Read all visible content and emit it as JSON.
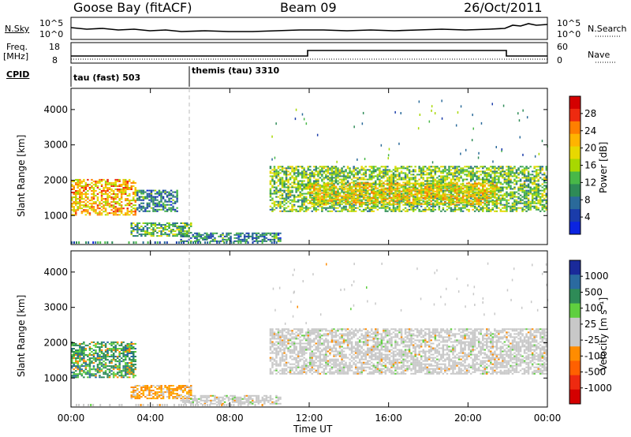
{
  "header": {
    "site": "Goose Bay (fitACF)",
    "beam": "Beam 09",
    "date": "26/Oct/2011"
  },
  "top_panels": {
    "nsky_label": "N.Sky",
    "nsky_ticks": [
      "10^5",
      "10^0"
    ],
    "nsearch_label": "N.Search",
    "nsearch_ticks": [
      "10^5",
      "10^0"
    ],
    "freq_label": "Freq.",
    "freq_unit": "[MHz]",
    "freq_ticks": [
      "18",
      "8"
    ],
    "nave_label": "Nave",
    "nave_ticks": [
      "60",
      "0"
    ],
    "cpid_label": "CPID",
    "cpid_segments": [
      "tau (fast) 503",
      "themis (tau) 3310"
    ]
  },
  "power_panel": {
    "ylabel": "Slant Range [km]",
    "colorbar_label": "Power [dB]",
    "colorbar_ticks": [
      "28",
      "24",
      "20",
      "16",
      "12",
      "8",
      "4"
    ],
    "colorbar_colors": [
      "#d40000",
      "#ee2a10",
      "#ff7f00",
      "#ffb400",
      "#e8d800",
      "#a8d800",
      "#48b848",
      "#2e8b57",
      "#2a6a9a",
      "#1a3caa",
      "#0b24e0"
    ]
  },
  "velocity_panel": {
    "ylabel": "Slant Range [km]",
    "colorbar_label": "Velocity [m s⁻¹]",
    "colorbar_ticks": [
      "1000",
      "500",
      "100",
      "25",
      "-25",
      "-100",
      "-500",
      "-1000"
    ],
    "colorbar_colors": [
      "#1a2a9a",
      "#2a6aa0",
      "#2e8b57",
      "#5fcf3f",
      "#c8c8c8",
      "#c8c8c8",
      "#ff8c00",
      "#ff6000",
      "#ee2a10",
      "#d40000"
    ]
  },
  "xaxis": {
    "label": "Time UT",
    "ticks": [
      "00:00",
      "04:00",
      "08:00",
      "12:00",
      "16:00",
      "20:00",
      "00:00"
    ]
  },
  "chart_data": [
    {
      "type": "heatmap",
      "title": "Goose Bay (fitACF)  Beam 09  26/Oct/2011",
      "xlabel": "Time UT",
      "ylabel": "Slant Range [km]",
      "colorbar": "Power [dB]",
      "xlim_hours": [
        0,
        24
      ],
      "ylim_km": [
        180,
        4600
      ],
      "clim_db": [
        0,
        32
      ],
      "x_ticks": [
        "00:00",
        "04:00",
        "08:00",
        "12:00",
        "16:00",
        "20:00",
        "00:00"
      ],
      "y_ticks": [
        1000,
        2000,
        3000,
        4000
      ],
      "regions": [
        {
          "t_start": 0.0,
          "t_end": 3.3,
          "range_low": 1000,
          "range_high": 2000,
          "power_db": 22
        },
        {
          "t_start": 3.3,
          "t_end": 5.3,
          "range_low": 1100,
          "range_high": 1700,
          "power_db": 8
        },
        {
          "t_start": 3.0,
          "t_end": 6.0,
          "range_low": 400,
          "range_high": 800,
          "power_db": 12
        },
        {
          "t_start": 5.5,
          "t_end": 10.5,
          "range_low": 250,
          "range_high": 500,
          "power_db": 8
        },
        {
          "t_start": 10.0,
          "t_end": 24.0,
          "range_low": 1100,
          "range_high": 2400,
          "power_db": 14
        },
        {
          "t_start": 12.0,
          "t_end": 21.5,
          "range_low": 1300,
          "range_high": 1900,
          "power_db": 20
        }
      ]
    },
    {
      "type": "heatmap",
      "xlabel": "Time UT",
      "ylabel": "Slant Range [km]",
      "colorbar": "Velocity [m s⁻¹]",
      "xlim_hours": [
        0,
        24
      ],
      "ylim_km": [
        180,
        4600
      ],
      "x_ticks": [
        "00:00",
        "04:00",
        "08:00",
        "12:00",
        "16:00",
        "20:00",
        "00:00"
      ],
      "y_ticks": [
        1000,
        2000,
        3000,
        4000
      ],
      "regions": [
        {
          "t_start": 0.0,
          "t_end": 3.3,
          "range_low": 1000,
          "range_high": 2000,
          "velocity": 100
        },
        {
          "t_start": 3.0,
          "t_end": 6.0,
          "range_low": 400,
          "range_high": 800,
          "velocity": -100
        },
        {
          "t_start": 5.5,
          "t_end": 10.5,
          "range_low": 250,
          "range_high": 500,
          "velocity": 0
        },
        {
          "t_start": 10.0,
          "t_end": 24.0,
          "range_low": 1100,
          "range_high": 2400,
          "velocity": 0
        }
      ]
    }
  ]
}
